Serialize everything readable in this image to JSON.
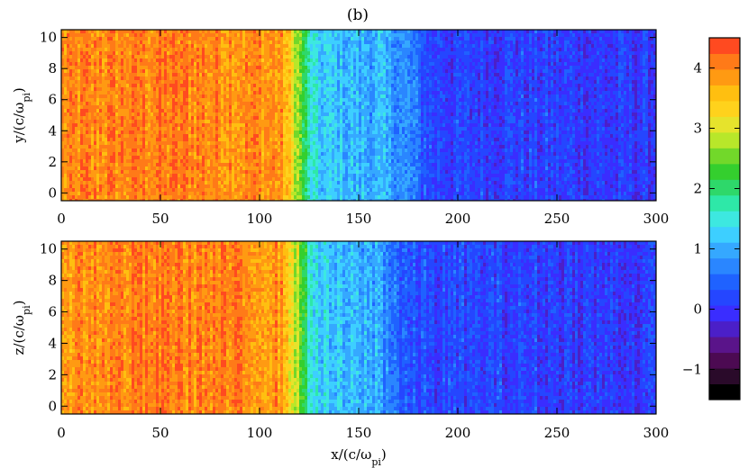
{
  "chart_data": {
    "type": "heatmap",
    "title": "(b)",
    "colorbar": {
      "range": [
        -1.5,
        4.5
      ],
      "ticks": [
        -1,
        0,
        1,
        2,
        3,
        4
      ],
      "tick_labels": [
        "−1",
        "0",
        "1",
        "2",
        "3",
        "4"
      ],
      "colors": [
        "#000000",
        "#2a0a2a",
        "#4c0a52",
        "#5a148a",
        "#4b1fc8",
        "#3a2dff",
        "#2546ff",
        "#1f62ff",
        "#2a86ff",
        "#35a8ff",
        "#3dcfff",
        "#3de8e0",
        "#2ee8a8",
        "#2ed86a",
        "#34cf2e",
        "#72d82a",
        "#b8e72a",
        "#e6e32c",
        "#ffd21c",
        "#ffbf10",
        "#ff9a12",
        "#ff7a18",
        "#ff4a20"
      ]
    },
    "panels": [
      {
        "xlim": [
          0,
          300
        ],
        "ylim": [
          -0.5,
          10.5
        ],
        "xticks": [
          0,
          50,
          100,
          150,
          200,
          250,
          300
        ],
        "yticks": [
          0,
          2,
          4,
          6,
          8,
          10
        ],
        "ylabel": "y/(c/ω",
        "ylabel_sub": "pi",
        "ylabel_end": ")",
        "profile": {
          "x": [
            0,
            20,
            40,
            60,
            80,
            100,
            110,
            115,
            120,
            125,
            130,
            140,
            150,
            160,
            170,
            178,
            185,
            200,
            225,
            250,
            275,
            300
          ],
          "value": [
            3.9,
            4.0,
            4.05,
            4.05,
            4.0,
            3.95,
            3.9,
            3.4,
            2.6,
            1.6,
            1.2,
            1.15,
            1.05,
            1.0,
            0.85,
            0.6,
            0.25,
            0.1,
            0.15,
            0.1,
            0.05,
            0.05
          ]
        }
      },
      {
        "xlim": [
          0,
          300
        ],
        "ylim": [
          -0.5,
          10.5
        ],
        "xticks": [
          0,
          50,
          100,
          150,
          200,
          250,
          300
        ],
        "yticks": [
          0,
          2,
          4,
          6,
          8,
          10
        ],
        "xlabel": "x/(c/ω",
        "xlabel_sub": "pi",
        "xlabel_end": ")",
        "ylabel": "z/(c/ω",
        "ylabel_sub": "pi",
        "ylabel_end": ")",
        "profile": {
          "x": [
            0,
            20,
            40,
            60,
            80,
            100,
            110,
            115,
            120,
            125,
            130,
            140,
            150,
            160,
            168,
            175,
            185,
            200,
            225,
            250,
            275,
            300
          ],
          "value": [
            3.9,
            4.0,
            4.05,
            4.05,
            4.0,
            3.95,
            3.9,
            3.4,
            2.6,
            1.7,
            1.25,
            1.1,
            1.0,
            1.0,
            0.6,
            0.3,
            0.2,
            0.15,
            0.15,
            0.1,
            0.05,
            0.05
          ]
        }
      }
    ]
  }
}
